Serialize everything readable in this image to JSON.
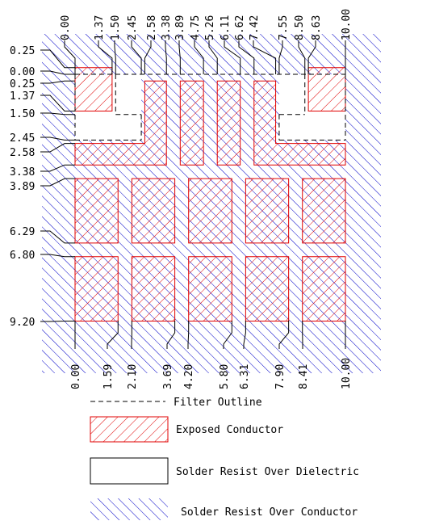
{
  "dimensions": {
    "top": [
      "0.00",
      "1.37",
      "1.50",
      "2.45",
      "2.58",
      "3.38",
      "3.89",
      "4.75",
      "5.26",
      "6.11",
      "6.62",
      "7.42",
      "7.55",
      "8.50",
      "8.63",
      "10.00"
    ],
    "left": [
      "0.25",
      "0.00",
      "0.25",
      "1.37",
      "1.50",
      "2.45",
      "2.58",
      "3.38",
      "3.89",
      "6.29",
      "6.80",
      "9.20"
    ],
    "bottom": [
      "0.00",
      "1.59",
      "2.10",
      "3.69",
      "4.20",
      "5.80",
      "6.31",
      "7.90",
      "8.41",
      "10.00"
    ]
  },
  "legend": [
    "Filter Outline",
    "Exposed Conductor",
    "Solder Resist Over Dielectric",
    "Solder Resist Over Conductor"
  ]
}
